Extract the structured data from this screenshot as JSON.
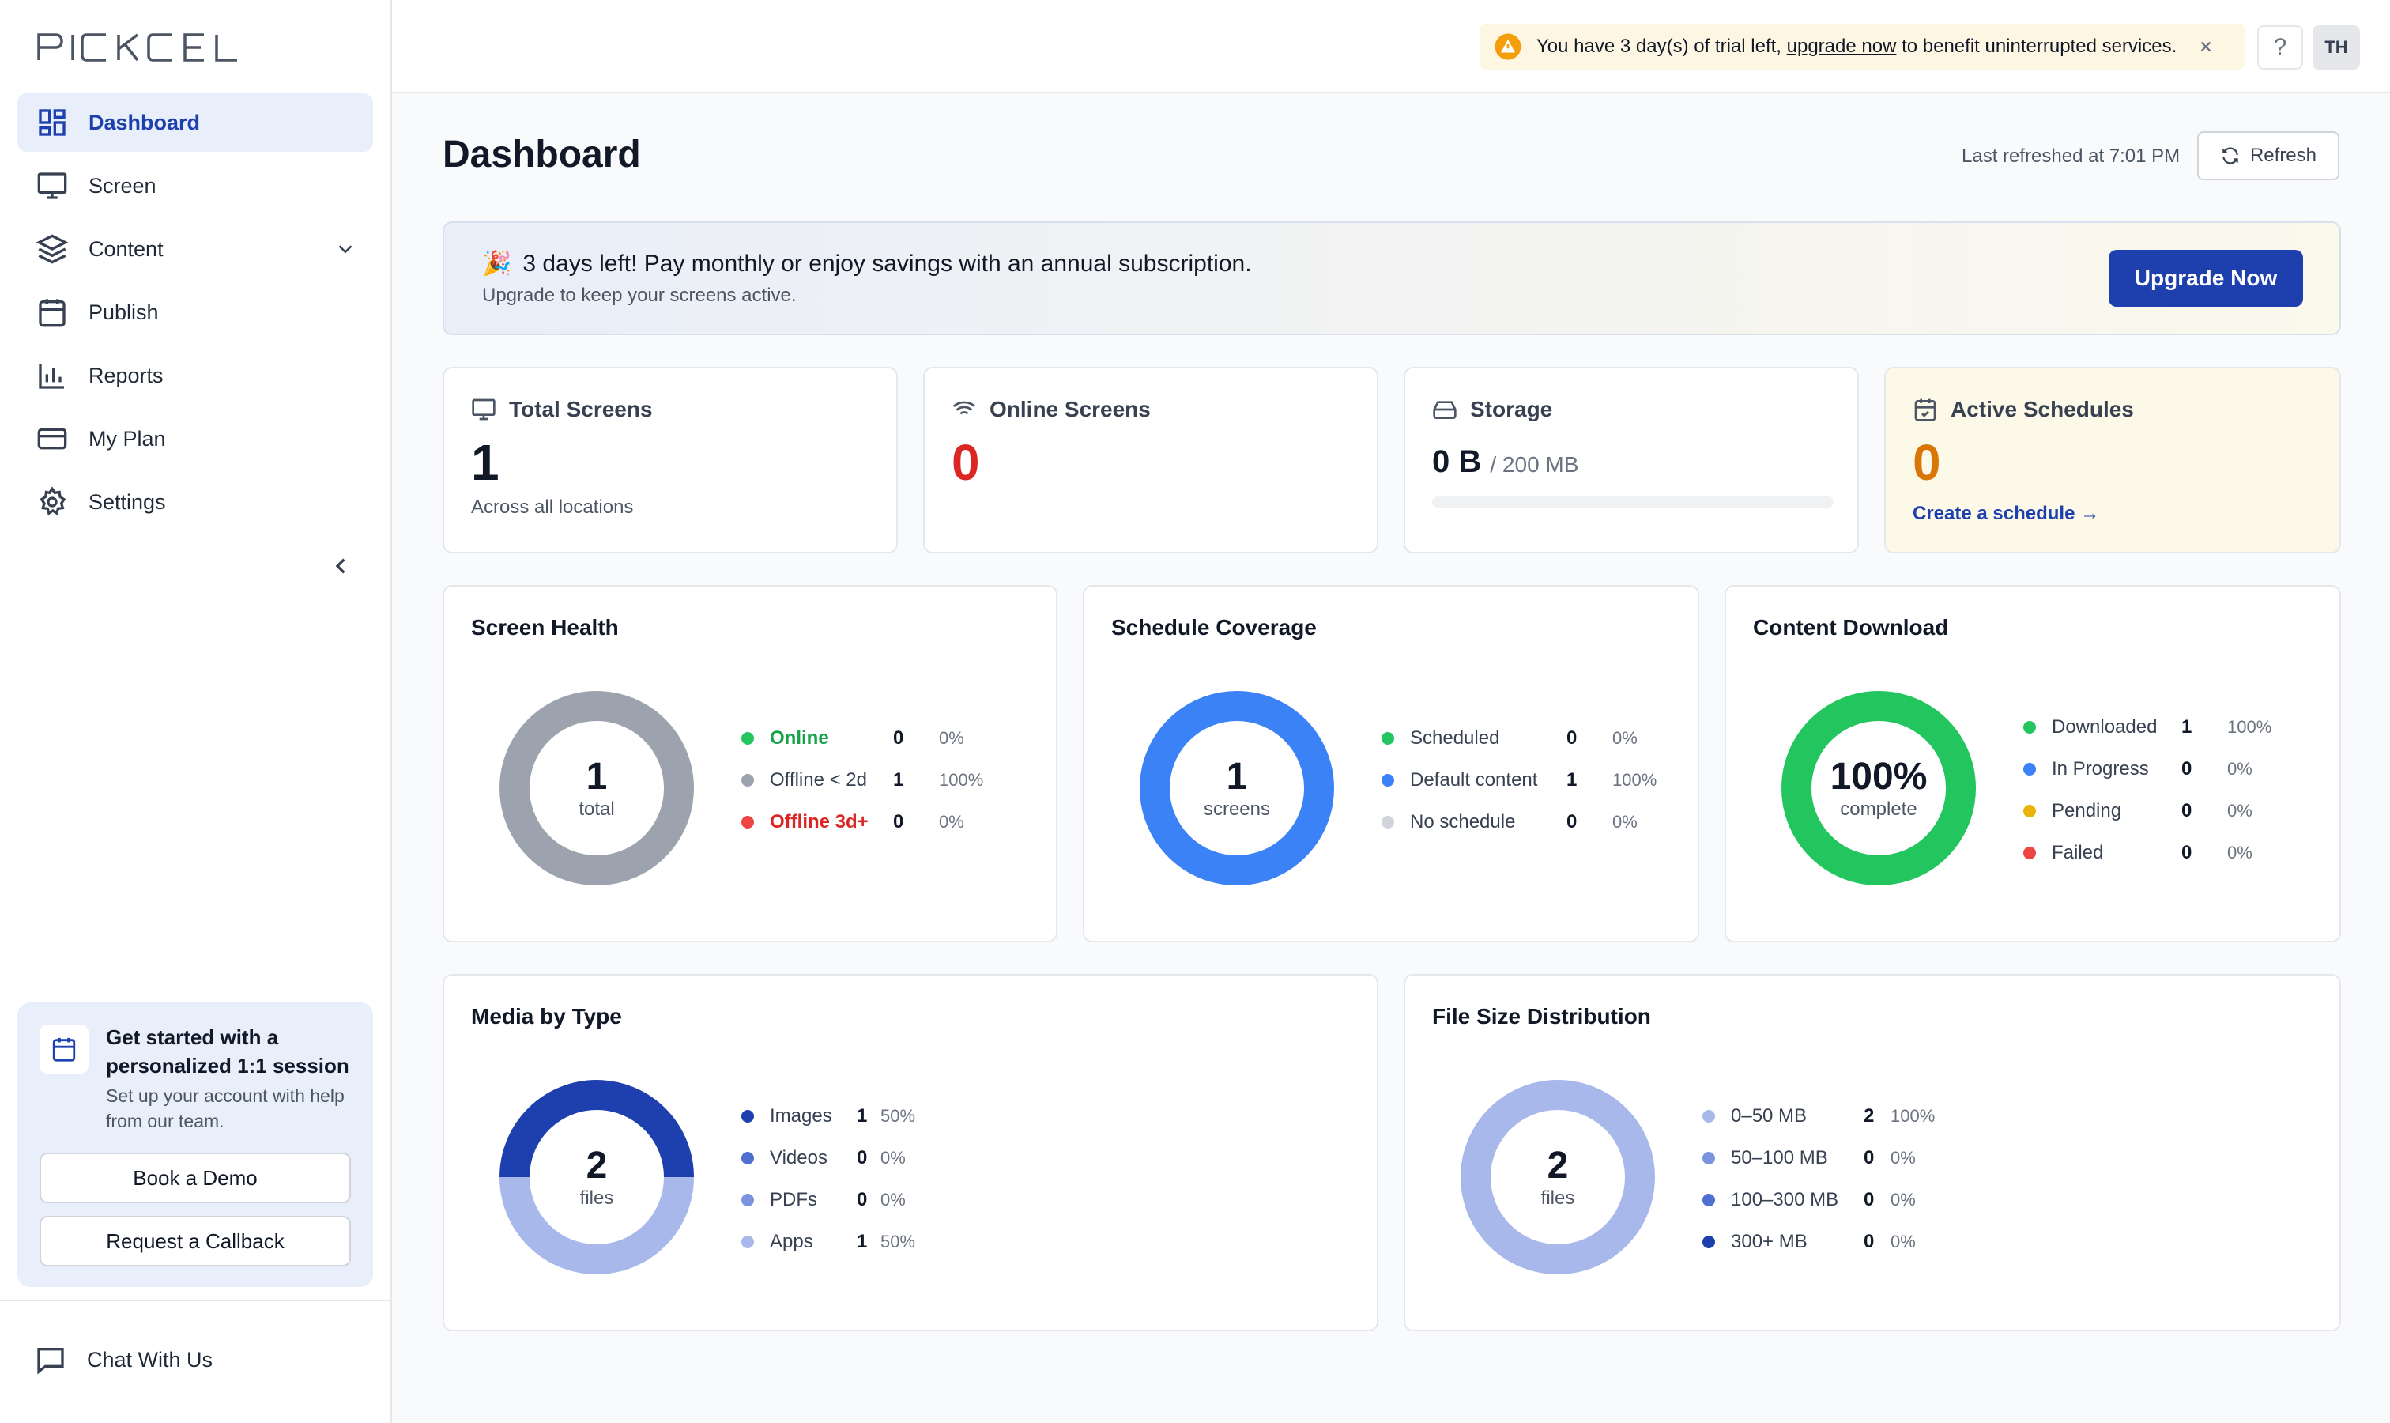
{
  "app": {
    "logo_text": "PICKCEL"
  },
  "sidebar": {
    "items": [
      {
        "label": "Dashboard",
        "icon": "dashboard-icon",
        "active": true
      },
      {
        "label": "Screen",
        "icon": "monitor-icon"
      },
      {
        "label": "Content",
        "icon": "layers-icon",
        "expandable": true
      },
      {
        "label": "Publish",
        "icon": "calendar-icon"
      },
      {
        "label": "Reports",
        "icon": "bar-chart-icon"
      },
      {
        "label": "My Plan",
        "icon": "credit-card-icon"
      },
      {
        "label": "Settings",
        "icon": "gear-icon"
      }
    ],
    "demo_card": {
      "title": "Get started with a personalized 1:1 session",
      "subtitle": "Set up your account with help from our team.",
      "book_label": "Book a Demo",
      "callback_label": "Request a Callback"
    },
    "chat_label": "Chat With Us"
  },
  "topbar": {
    "trial_prefix": "You have 3 day(s) of trial left, ",
    "trial_link": "upgrade now",
    "trial_suffix": " to benefit uninterrupted services.",
    "help_label": "?",
    "avatar_initials": "TH"
  },
  "main": {
    "title": "Dashboard",
    "last_refreshed": "Last refreshed at 7:01 PM",
    "refresh_label": "Refresh",
    "promo": {
      "emoji": "🎉",
      "title": "3 days left! Pay monthly or enjoy savings with an annual subscription.",
      "subtitle": "Upgrade to keep your screens active.",
      "button": "Upgrade Now"
    },
    "stats": {
      "total_screens": {
        "label": "Total Screens",
        "value": "1",
        "sub": "Across all locations"
      },
      "online_screens": {
        "label": "Online Screens",
        "value": "0"
      },
      "storage": {
        "label": "Storage",
        "value": "0 B",
        "capacity": "/ 200 MB",
        "used_fraction": 0
      },
      "active_schedules": {
        "label": "Active Schedules",
        "value": "0",
        "link": "Create a schedule →"
      }
    },
    "screen_health": {
      "title": "Screen Health",
      "center_value": "1",
      "center_label": "total",
      "rows": [
        {
          "name": "Online",
          "value": "0",
          "pct": "0%",
          "color": "#22c55e"
        },
        {
          "name": "Offline < 2d",
          "value": "1",
          "pct": "100%",
          "color": "#9ca3af"
        },
        {
          "name": "Offline 3d+",
          "value": "0",
          "pct": "0%",
          "color": "#ef4444"
        }
      ]
    },
    "schedule_coverage": {
      "title": "Schedule Coverage",
      "center_value": "1",
      "center_label": "screens",
      "rows": [
        {
          "name": "Scheduled",
          "value": "0",
          "pct": "0%",
          "color": "#22c55e"
        },
        {
          "name": "Default content",
          "value": "1",
          "pct": "100%",
          "color": "#3b82f6"
        },
        {
          "name": "No schedule",
          "value": "0",
          "pct": "0%",
          "color": "#d1d5db"
        }
      ]
    },
    "content_download": {
      "title": "Content Download",
      "center_value": "100%",
      "center_label": "complete",
      "rows": [
        {
          "name": "Downloaded",
          "value": "1",
          "pct": "100%",
          "color": "#22c55e"
        },
        {
          "name": "In Progress",
          "value": "0",
          "pct": "0%",
          "color": "#3b82f6"
        },
        {
          "name": "Pending",
          "value": "0",
          "pct": "0%",
          "color": "#eab308"
        },
        {
          "name": "Failed",
          "value": "0",
          "pct": "0%",
          "color": "#ef4444"
        }
      ]
    },
    "media_by_type": {
      "title": "Media by Type",
      "center_value": "2",
      "center_label": "files",
      "rows": [
        {
          "name": "Images",
          "value": "1",
          "pct": "50%",
          "color": "#1e40af"
        },
        {
          "name": "Videos",
          "value": "0",
          "pct": "0%",
          "color": "#4f6fd1"
        },
        {
          "name": "PDFs",
          "value": "0",
          "pct": "0%",
          "color": "#7b93e0"
        },
        {
          "name": "Apps",
          "value": "1",
          "pct": "50%",
          "color": "#a9b8ea"
        }
      ]
    },
    "file_size": {
      "title": "File Size Distribution",
      "center_value": "2",
      "center_label": "files",
      "rows": [
        {
          "name": "0–50 MB",
          "value": "2",
          "pct": "100%",
          "color": "#a9b8ea"
        },
        {
          "name": "50–100 MB",
          "value": "0",
          "pct": "0%",
          "color": "#7b93e0"
        },
        {
          "name": "100–300 MB",
          "value": "0",
          "pct": "0%",
          "color": "#4f6fd1"
        },
        {
          "name": "300+ MB",
          "value": "0",
          "pct": "0%",
          "color": "#1e40af"
        }
      ]
    }
  }
}
